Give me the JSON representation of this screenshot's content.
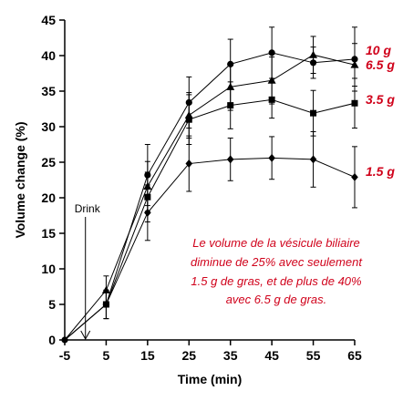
{
  "chart_data": {
    "type": "line",
    "xlabel": "Time (min)",
    "ylabel": "Volume change (%)",
    "xlim": [
      -5,
      65
    ],
    "ylim": [
      0,
      45
    ],
    "x_ticks": [
      -5,
      5,
      15,
      25,
      35,
      45,
      55,
      65
    ],
    "y_ticks": [
      0,
      5,
      10,
      15,
      20,
      25,
      30,
      35,
      40,
      45
    ],
    "x": [
      -5,
      5,
      15,
      25,
      35,
      45,
      55,
      65
    ],
    "series": [
      {
        "name": "10 g",
        "marker": "circle",
        "values": [
          0,
          5.0,
          23.2,
          33.4,
          38.8,
          40.4,
          39.0,
          39.5
        ],
        "errors": [
          0,
          2.0,
          4.3,
          3.6,
          3.5,
          3.6,
          2.2,
          4.5
        ]
      },
      {
        "name": "6.5 g",
        "marker": "triangle",
        "values": [
          0,
          7.0,
          21.6,
          31.6,
          35.6,
          36.5,
          40.1,
          38.7
        ],
        "errors": [
          0,
          2.0,
          3.5,
          3.2,
          3.3,
          3.3,
          2.6,
          3.0
        ]
      },
      {
        "name": "3.5 g",
        "marker": "square",
        "values": [
          0,
          5.0,
          20.1,
          31.0,
          33.0,
          33.8,
          31.9,
          33.3
        ],
        "errors": [
          0,
          2.0,
          3.5,
          3.5,
          3.3,
          2.6,
          3.2,
          3.5
        ]
      },
      {
        "name": "1.5 g",
        "marker": "diamond",
        "values": [
          0,
          5.0,
          17.9,
          24.8,
          25.4,
          25.6,
          25.4,
          22.9
        ],
        "errors": [
          0,
          2.0,
          3.9,
          3.9,
          3.0,
          3.0,
          3.9,
          4.3
        ]
      }
    ],
    "annotations": {
      "drink_label": "Drink",
      "drink_x": 0,
      "note_lines": [
        "Le volume de la vésicule biliaire",
        "diminue de 25% avec seulement",
        "1.5 g de gras, et de plus de 40%",
        "avec 6.5 g de gras."
      ]
    },
    "label_color": "#d0021b",
    "line_color": "#000000",
    "grid": false,
    "legend": "inline-right"
  }
}
